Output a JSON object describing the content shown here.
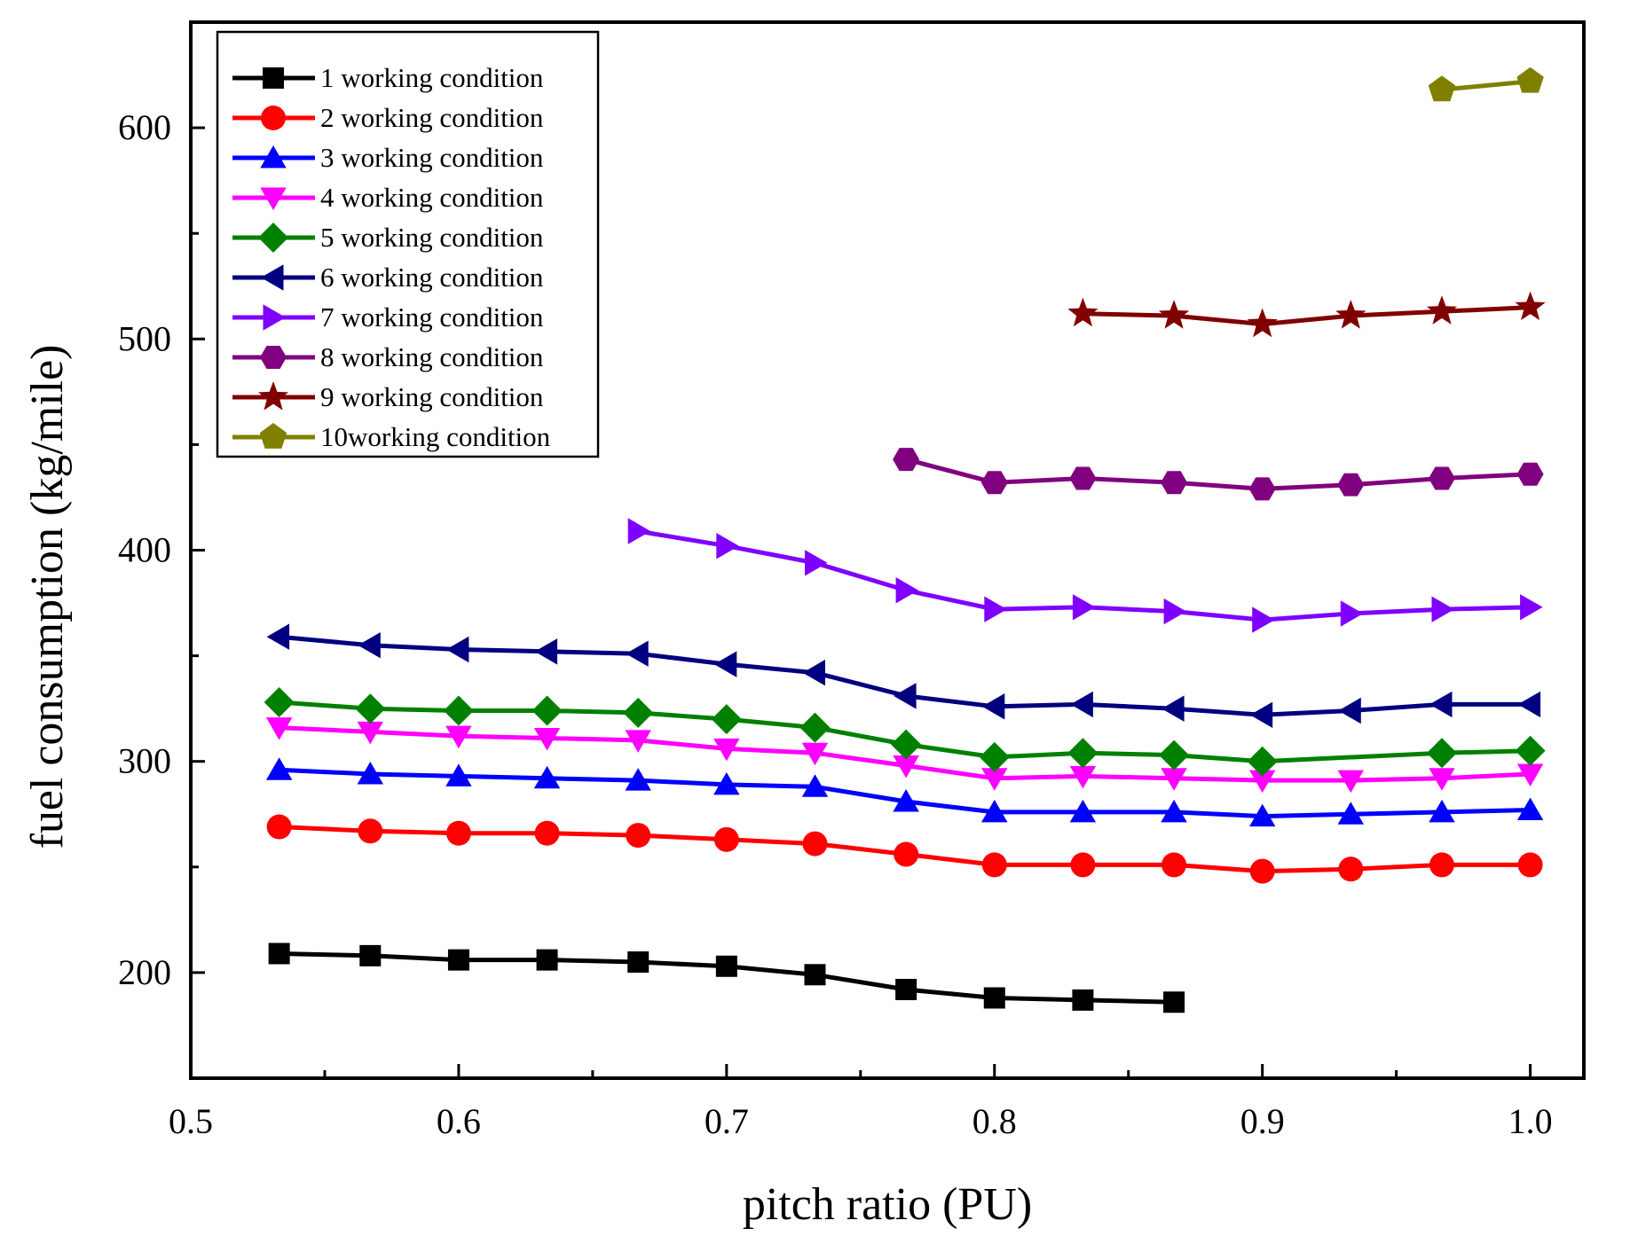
{
  "chart_data": {
    "type": "line",
    "title": "",
    "xlabel": "pitch ratio (PU)",
    "ylabel": "fuel consumption (kg/mile)",
    "xlim": [
      0.5,
      1.02
    ],
    "ylim": [
      150,
      650
    ],
    "xticks": [
      0.5,
      0.6,
      0.7,
      0.8,
      0.9,
      1.0
    ],
    "xtick_labels": [
      "0.5",
      "0.6",
      "0.7",
      "0.8",
      "0.9",
      "1.0"
    ],
    "yticks": [
      200,
      300,
      400,
      500,
      600
    ],
    "ytick_labels": [
      "200",
      "300",
      "400",
      "500",
      "600"
    ],
    "grid": false,
    "legend_position": "top-left",
    "series": [
      {
        "name": "1 working condition",
        "color": "#000000",
        "marker": "square",
        "x": [
          0.533,
          0.567,
          0.6,
          0.633,
          0.667,
          0.7,
          0.733,
          0.767,
          0.8,
          0.833,
          0.867
        ],
        "y": [
          209,
          208,
          206,
          206,
          205,
          203,
          199,
          192,
          188,
          187,
          186
        ]
      },
      {
        "name": "2 working condition",
        "color": "#ff0000",
        "marker": "circle",
        "x": [
          0.533,
          0.567,
          0.6,
          0.633,
          0.667,
          0.7,
          0.733,
          0.767,
          0.8,
          0.833,
          0.867,
          0.9,
          0.933,
          0.967,
          1.0
        ],
        "y": [
          269,
          267,
          266,
          266,
          265,
          263,
          261,
          256,
          251,
          251,
          251,
          248,
          249,
          251,
          251
        ]
      },
      {
        "name": "3 working condition",
        "color": "#0000ff",
        "marker": "triangle-up",
        "x": [
          0.533,
          0.567,
          0.6,
          0.633,
          0.667,
          0.7,
          0.733,
          0.767,
          0.8,
          0.833,
          0.867,
          0.9,
          0.933,
          0.967,
          1.0
        ],
        "y": [
          296,
          294,
          293,
          292,
          291,
          289,
          288,
          281,
          276,
          276,
          276,
          274,
          275,
          276,
          277
        ]
      },
      {
        "name": "4 working condition",
        "color": "#ff00ff",
        "marker": "triangle-down",
        "x": [
          0.533,
          0.567,
          0.6,
          0.633,
          0.667,
          0.7,
          0.733,
          0.767,
          0.8,
          0.833,
          0.867,
          0.9,
          0.933,
          0.967,
          1.0
        ],
        "y": [
          316,
          314,
          312,
          311,
          310,
          306,
          304,
          298,
          292,
          293,
          292,
          291,
          291,
          292,
          294
        ]
      },
      {
        "name": "5 working condition",
        "color": "#008000",
        "marker": "diamond",
        "x": [
          0.533,
          0.567,
          0.6,
          0.633,
          0.667,
          0.7,
          0.733,
          0.767,
          0.8,
          0.833,
          0.867,
          0.9,
          0.967,
          1.0
        ],
        "y": [
          328,
          325,
          324,
          324,
          323,
          320,
          316,
          308,
          302,
          304,
          303,
          300,
          304,
          305
        ]
      },
      {
        "name": "6 working condition",
        "color": "#000080",
        "marker": "triangle-left",
        "x": [
          0.533,
          0.567,
          0.6,
          0.633,
          0.667,
          0.7,
          0.733,
          0.767,
          0.8,
          0.833,
          0.867,
          0.9,
          0.933,
          0.967,
          1.0
        ],
        "y": [
          359,
          355,
          353,
          352,
          351,
          346,
          342,
          331,
          326,
          327,
          325,
          322,
          324,
          327,
          327
        ]
      },
      {
        "name": "7 working condition",
        "color": "#8000ff",
        "marker": "triangle-right",
        "x": [
          0.667,
          0.7,
          0.733,
          0.767,
          0.8,
          0.833,
          0.867,
          0.9,
          0.933,
          0.967,
          1.0
        ],
        "y": [
          409,
          402,
          394,
          381,
          372,
          373,
          371,
          367,
          370,
          372,
          373
        ]
      },
      {
        "name": "8 working condition",
        "color": "#800080",
        "marker": "hexagon",
        "x": [
          0.767,
          0.8,
          0.833,
          0.867,
          0.9,
          0.933,
          0.967,
          1.0
        ],
        "y": [
          443,
          432,
          434,
          432,
          429,
          431,
          434,
          436
        ]
      },
      {
        "name": "9 working condition",
        "color": "#800000",
        "marker": "star",
        "x": [
          0.833,
          0.867,
          0.9,
          0.933,
          0.967,
          1.0
        ],
        "y": [
          512,
          511,
          507,
          511,
          513,
          515
        ]
      },
      {
        "name": "10working condition",
        "color": "#808000",
        "marker": "pentagon",
        "x": [
          0.967,
          1.0
        ],
        "y": [
          618,
          622
        ]
      }
    ]
  }
}
